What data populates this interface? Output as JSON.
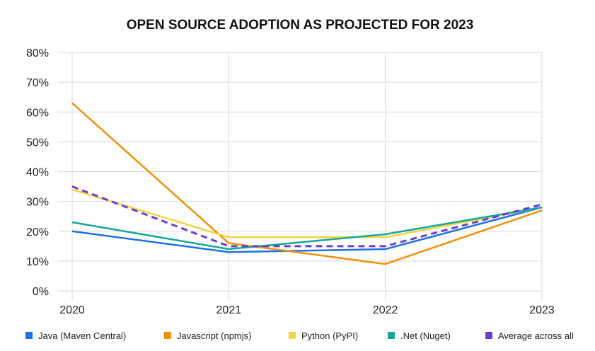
{
  "chart_data": {
    "type": "line",
    "title": "OPEN SOURCE ADOPTION AS PROJECTED FOR 2023",
    "xlabel": "",
    "ylabel": "",
    "x": [
      "2020",
      "2021",
      "2022",
      "2023"
    ],
    "ylim": [
      0,
      80
    ],
    "yticks": [
      0,
      10,
      20,
      30,
      40,
      50,
      60,
      70,
      80
    ],
    "ytick_labels": [
      "0%",
      "10%",
      "20%",
      "30%",
      "40%",
      "50%",
      "60%",
      "70%",
      "80%"
    ],
    "grid": true,
    "legend_position": "bottom",
    "series": [
      {
        "name": "Java (Maven Central)",
        "values": [
          20,
          13,
          14,
          28
        ],
        "color": "#1f6fe5",
        "dashed": false
      },
      {
        "name": "Javascript (npmjs)",
        "values": [
          63,
          16,
          9,
          27
        ],
        "color": "#f0900c",
        "dashed": false
      },
      {
        "name": "Python (PyPI)",
        "values": [
          34,
          18,
          18,
          28
        ],
        "color": "#f5d43c",
        "dashed": false
      },
      {
        "name": ".Net (Nuget)",
        "values": [
          23,
          14,
          19,
          28
        ],
        "color": "#14a89a",
        "dashed": false
      },
      {
        "name": "Average across all",
        "values": [
          35,
          15,
          15,
          29
        ],
        "color": "#6b3fd6",
        "dashed": true
      }
    ]
  }
}
